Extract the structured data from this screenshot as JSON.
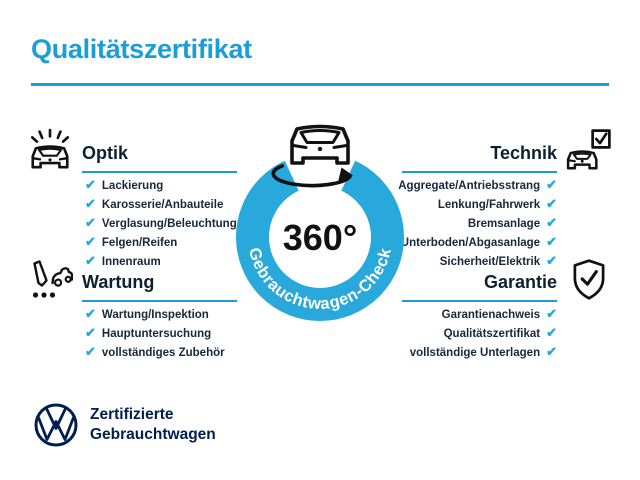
{
  "title": "Qualitätszertifikat",
  "colors": {
    "accent_blue": "#1B9DD9",
    "ring_blue": "#29A8DC",
    "check_blue": "#29A8DC",
    "dark_navy": "#001E50",
    "text_dark": "#16283C"
  },
  "check_glyph": "✔",
  "center_badge": {
    "degrees": "360°",
    "ring_text": "Gebrauchtwagen-Check"
  },
  "sections": [
    {
      "id": "optik",
      "label": "Optik",
      "icon": "car-shine-icon",
      "side": "left",
      "items": [
        "Lackierung",
        "Karosserie/Anbauteile",
        "Verglasung/Beleuchtung",
        "Felgen/Reifen",
        "Innenraum"
      ]
    },
    {
      "id": "technik",
      "label": "Technik",
      "icon": "car-checkbox-icon",
      "side": "right",
      "items": [
        "Aggregate/Antriebsstrang",
        "Lenkung/Fahrwerk",
        "Bremsanlage",
        "Unterboden/Abgasanlage",
        "Sicherheit/Elektrik"
      ]
    },
    {
      "id": "wartung",
      "label": "Wartung",
      "icon": "service-checklist-icon",
      "side": "left",
      "items": [
        "Wartung/Inspektion",
        "Hauptuntersuchung",
        "vollständiges Zubehör"
      ]
    },
    {
      "id": "garantie",
      "label": "Garantie",
      "icon": "shield-check-icon",
      "side": "right",
      "items": [
        "Garantienachweis",
        "Qualitätszertifikat",
        "vollständige Unterlagen"
      ]
    }
  ],
  "footer": {
    "brand_line1": "Zertifizierte",
    "brand_line2": "Gebrauchtwagen"
  }
}
